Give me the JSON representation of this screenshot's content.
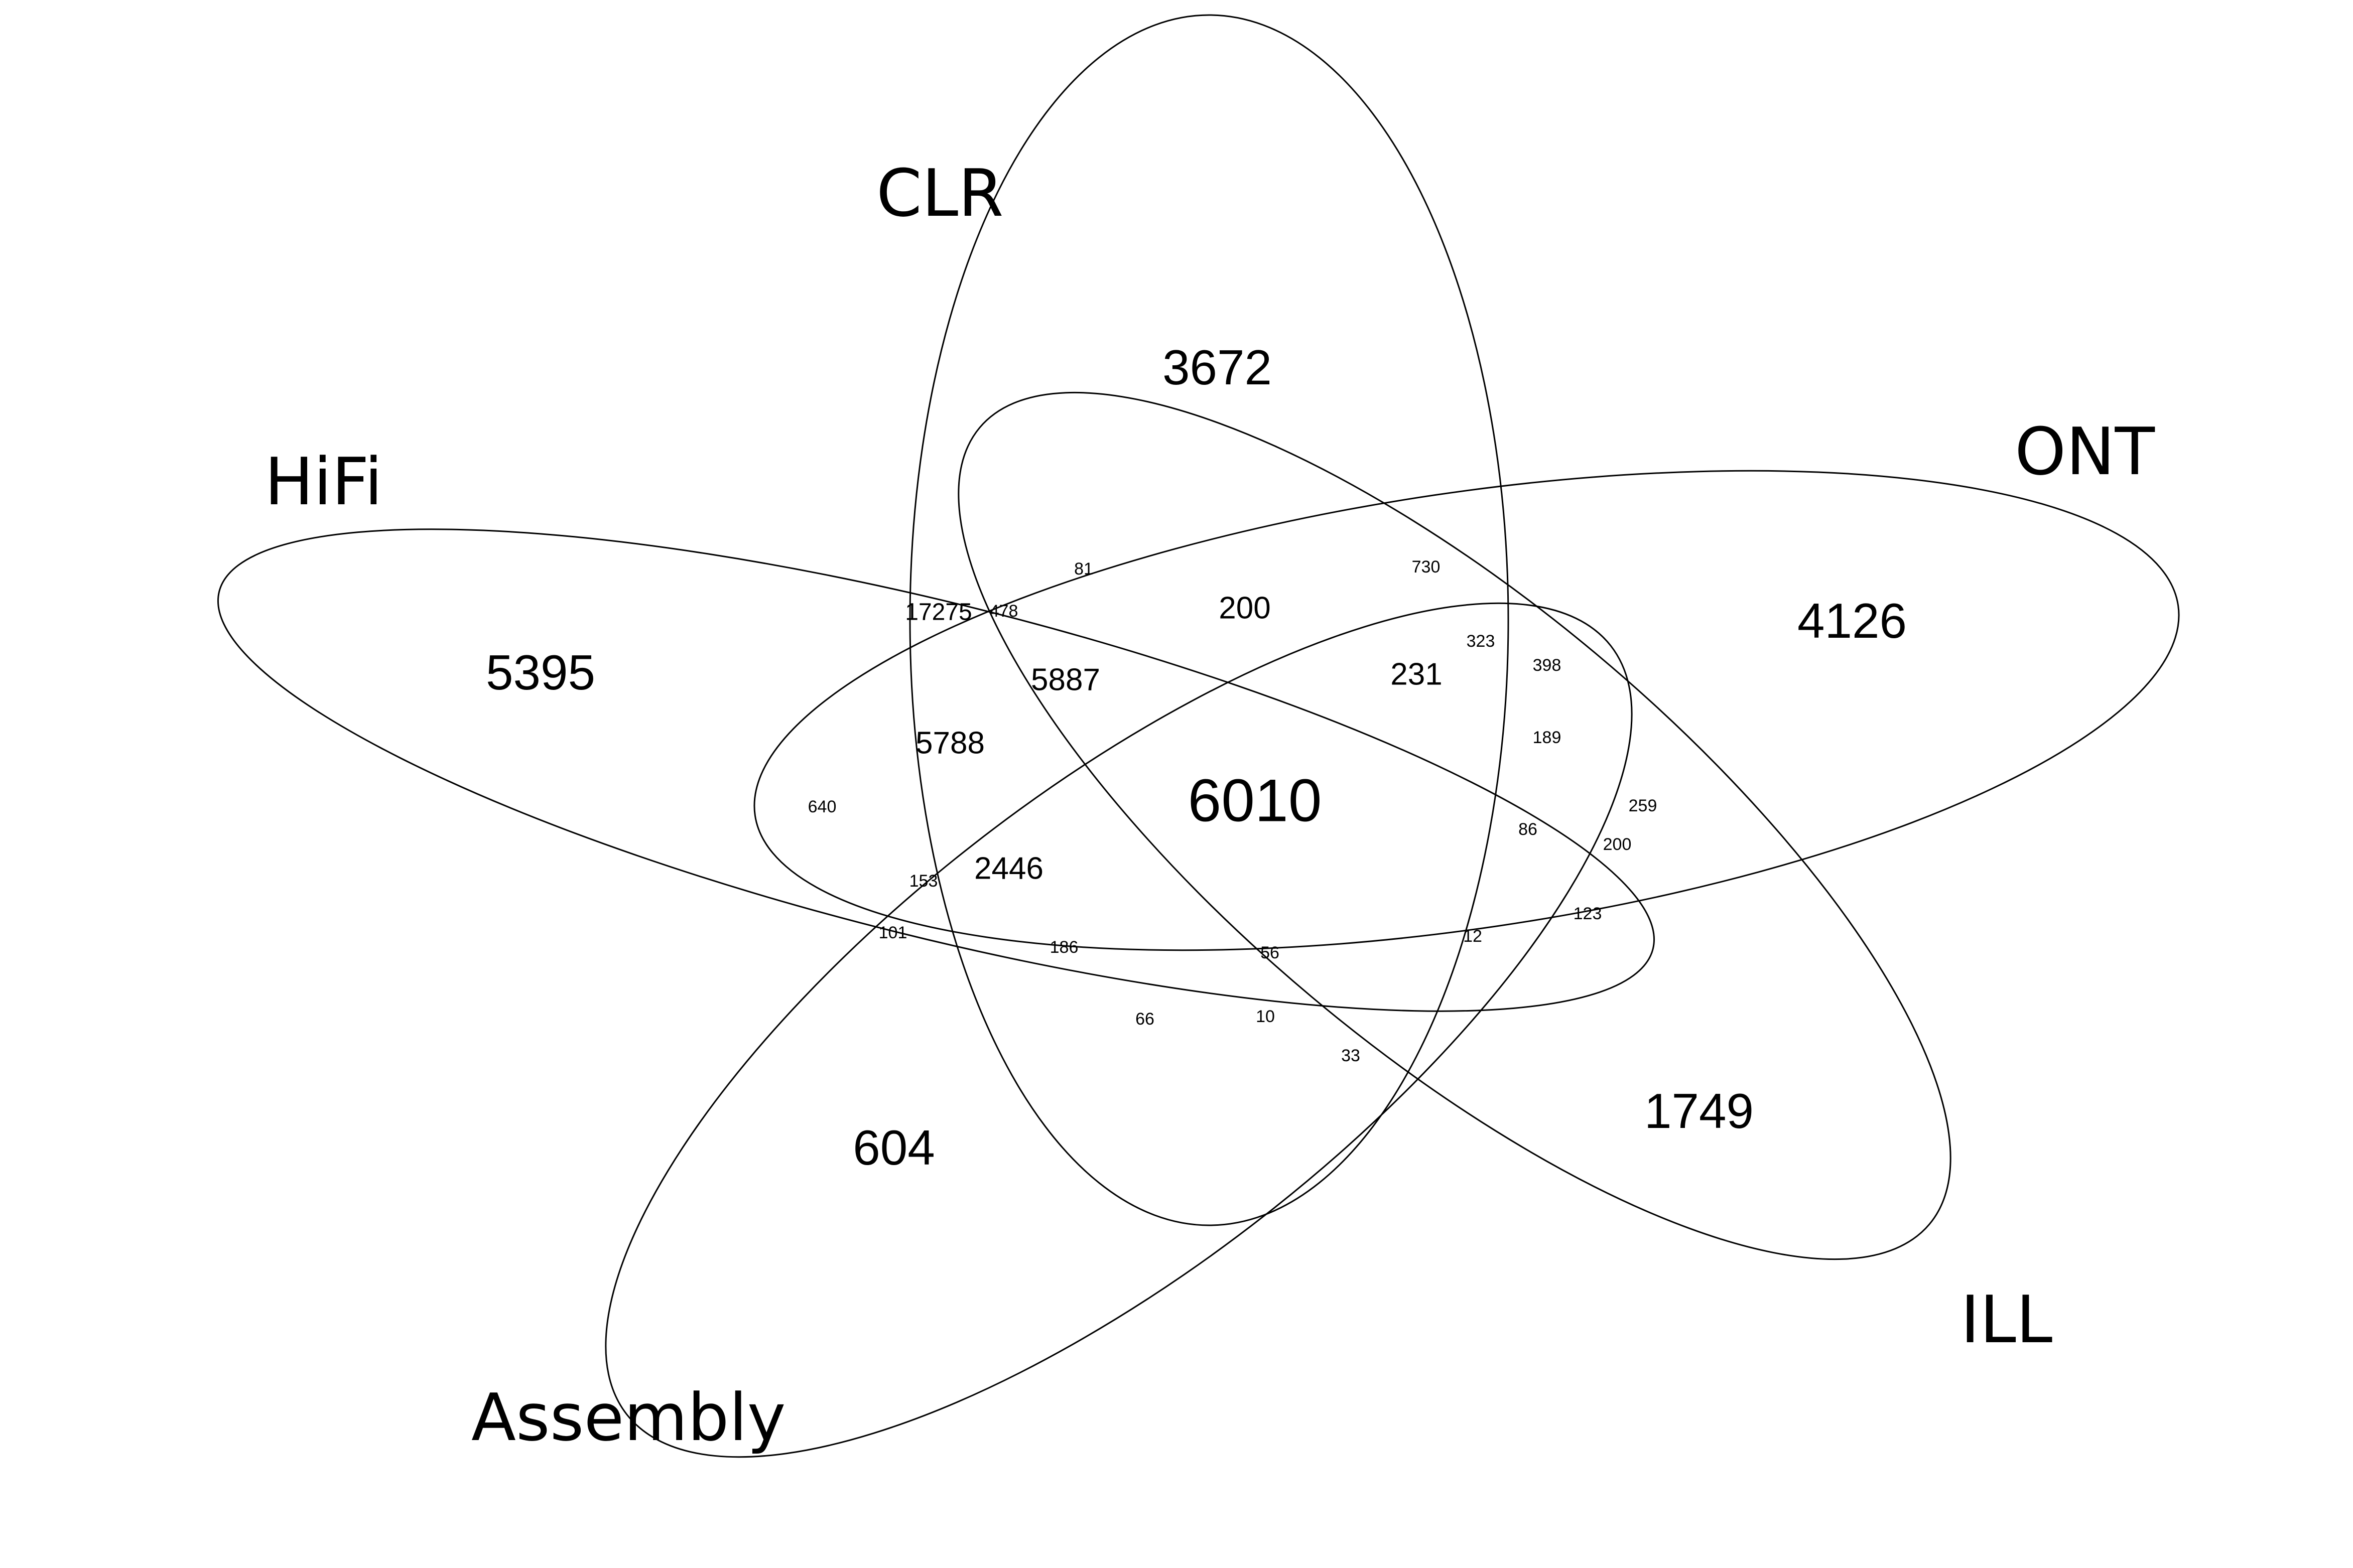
{
  "sets": {
    "clr": "CLR",
    "hifi": "HiFi",
    "ont": "ONT",
    "ill": "ILL",
    "assembly": "Assembly"
  },
  "regions": {
    "clr_only": "3672",
    "hifi_only": "5395",
    "ont_only": "4126",
    "ill_only": "1749",
    "assembly_only": "604",
    "all_five": "6010",
    "r200_top": "200",
    "r5887": "5887",
    "r5788": "5788",
    "r2446": "2446",
    "r231": "231",
    "r17275": "17275",
    "r478": "478",
    "r81": "81",
    "r730": "730",
    "r323": "323",
    "r398": "398",
    "r189": "189",
    "r259": "259",
    "r86": "86",
    "r200_right": "200",
    "r123": "123",
    "r12": "12",
    "r56": "56",
    "r186": "186",
    "r101": "101",
    "r153": "153",
    "r640": "640",
    "r66": "66",
    "r10": "10",
    "r33": "33"
  }
}
